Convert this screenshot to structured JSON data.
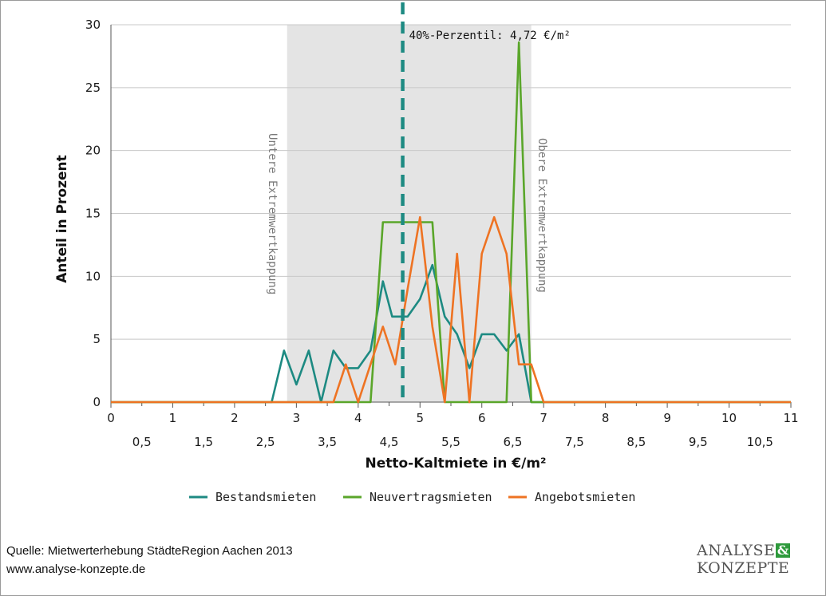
{
  "chart_data": {
    "type": "line",
    "ylabel": "Anteil in Prozent",
    "xlabel": "Netto-Kaltmiete in €/m²",
    "xlim": [
      0,
      11
    ],
    "ylim": [
      0,
      30
    ],
    "x_major_ticks": [
      "0",
      "1",
      "2",
      "3",
      "4",
      "5",
      "6",
      "7",
      "8",
      "9",
      "10",
      "11"
    ],
    "x_minor_ticks": [
      "0,5",
      "1,5",
      "2,5",
      "3,5",
      "4,5",
      "5,5",
      "6,5",
      "7,5",
      "8,5",
      "9,5",
      "10,5"
    ],
    "y_ticks": [
      "0",
      "5",
      "10",
      "15",
      "20",
      "25",
      "30"
    ],
    "grid": "horizontal",
    "legend_position": "bottom",
    "band": {
      "from": 2.85,
      "to": 6.8,
      "lower_label": "Untere Extremwertkappung",
      "upper_label": "Obere Extremwertkappung"
    },
    "percentile": {
      "x": 4.72,
      "label": "40%-Perzentil: 4,72 €/m²",
      "color": "#1d8a82"
    },
    "series": [
      {
        "name": "Bestandsmieten",
        "color": "#1d8a82",
        "x": [
          0,
          2.6,
          2.8,
          3.0,
          3.2,
          3.4,
          3.6,
          3.8,
          4.0,
          4.2,
          4.4,
          4.55,
          4.8,
          5.0,
          5.2,
          5.4,
          5.6,
          5.8,
          6.0,
          6.2,
          6.4,
          6.6,
          6.8,
          7.0,
          11
        ],
        "y": [
          0,
          0,
          4.1,
          1.4,
          4.1,
          0,
          4.1,
          2.7,
          2.7,
          4.1,
          9.6,
          6.8,
          6.8,
          8.2,
          10.9,
          6.8,
          5.4,
          2.7,
          5.4,
          5.4,
          4.1,
          5.4,
          0,
          0,
          0
        ]
      },
      {
        "name": "Neuvertragsmieten",
        "color": "#5aa62a",
        "x": [
          0,
          4.2,
          4.4,
          5.2,
          5.4,
          6.4,
          6.6,
          6.8,
          7.0,
          11
        ],
        "y": [
          0,
          0,
          14.3,
          14.3,
          0,
          0,
          28.6,
          0,
          0,
          0
        ]
      },
      {
        "name": "Angebotsmieten",
        "color": "#ee7323",
        "x": [
          0,
          3.6,
          3.8,
          4.0,
          4.2,
          4.4,
          4.6,
          4.8,
          5.0,
          5.2,
          5.4,
          5.6,
          5.8,
          6.0,
          6.2,
          6.4,
          6.6,
          6.8,
          7.0,
          11
        ],
        "y": [
          0,
          0,
          3.0,
          0,
          3.0,
          6.0,
          3.0,
          9.0,
          14.7,
          6.0,
          0,
          11.8,
          0,
          11.8,
          14.7,
          11.8,
          3.0,
          3.0,
          0,
          0
        ]
      }
    ]
  },
  "footer": {
    "source_line1": "Quelle: Mietwerterhebung StädteRegion Aachen 2013",
    "source_line2": "www.analyse-konzepte.de",
    "logo_line1": "ANALYSE",
    "logo_amp": "&",
    "logo_line2": "KONZEPTE"
  }
}
